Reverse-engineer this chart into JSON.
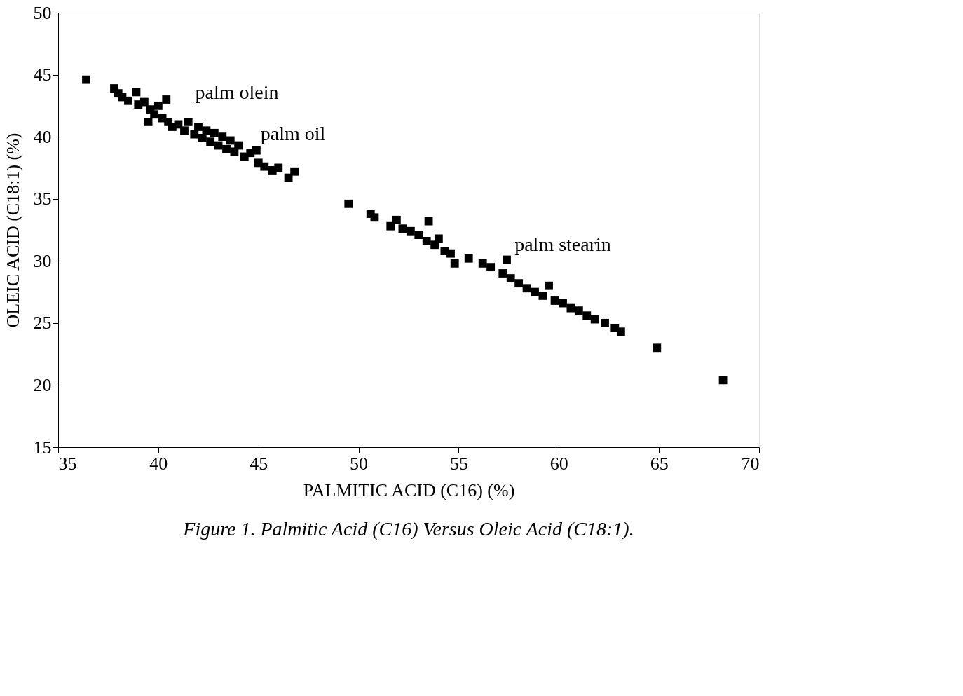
{
  "chart_data": {
    "type": "scatter",
    "xlabel": "PALMITIC ACID (C16)  (%)",
    "ylabel": "OLEIC ACID (C18:1)  (%)",
    "x": [
      36.4,
      37.8,
      38.0,
      38.2,
      38.5,
      38.9,
      39.0,
      39.3,
      39.5,
      39.6,
      39.8,
      40.0,
      40.2,
      40.4,
      40.5,
      40.7,
      41.0,
      41.3,
      41.5,
      41.8,
      42.0,
      42.2,
      42.4,
      42.6,
      42.8,
      43.0,
      43.2,
      43.4,
      43.6,
      43.8,
      44.0,
      44.3,
      44.6,
      44.9,
      45.0,
      45.3,
      45.7,
      46.0,
      46.5,
      46.8,
      49.5,
      50.6,
      50.8,
      51.6,
      51.9,
      52.2,
      52.6,
      53.0,
      53.4,
      53.5,
      53.8,
      54.0,
      54.3,
      54.6,
      54.8,
      55.5,
      56.2,
      56.6,
      57.2,
      57.4,
      57.6,
      58.0,
      58.4,
      58.8,
      59.2,
      59.5,
      59.8,
      60.2,
      60.6,
      61.0,
      61.4,
      61.8,
      62.3,
      62.8,
      63.1,
      64.9,
      68.2
    ],
    "series": [
      {
        "color": "#000000",
        "values": [
          44.6,
          43.9,
          43.5,
          43.2,
          42.9,
          43.6,
          42.6,
          42.8,
          41.2,
          42.2,
          41.8,
          42.5,
          41.5,
          43.0,
          41.2,
          40.8,
          41.0,
          40.5,
          41.2,
          40.2,
          40.8,
          39.9,
          40.5,
          39.6,
          40.3,
          39.3,
          40.0,
          39.0,
          39.7,
          38.8,
          39.3,
          38.4,
          38.7,
          38.9,
          37.9,
          37.6,
          37.3,
          37.5,
          36.7,
          37.2,
          34.6,
          33.8,
          33.5,
          32.8,
          33.3,
          32.6,
          32.4,
          32.1,
          31.6,
          33.2,
          31.3,
          31.8,
          30.8,
          30.6,
          29.8,
          30.2,
          29.8,
          29.5,
          29.0,
          30.1,
          28.6,
          28.2,
          27.8,
          27.5,
          27.2,
          28.0,
          26.8,
          26.6,
          26.2,
          26.0,
          25.6,
          25.3,
          25.0,
          24.6,
          24.3,
          23.0,
          20.4
        ]
      }
    ],
    "marker": "square",
    "xlim": [
      35,
      70
    ],
    "xticks": [
      35,
      40,
      45,
      50,
      55,
      60,
      65,
      70
    ],
    "ylim": [
      15,
      50
    ],
    "yticks": [
      15,
      20,
      25,
      30,
      35,
      40,
      45,
      50
    ],
    "grid": false,
    "annotations": [
      "palm olein",
      "palm oil",
      "palm stearin",
      "Figure 1. Palmitic Acid (C16) Versus Oleic Acid (C18:1)."
    ]
  }
}
